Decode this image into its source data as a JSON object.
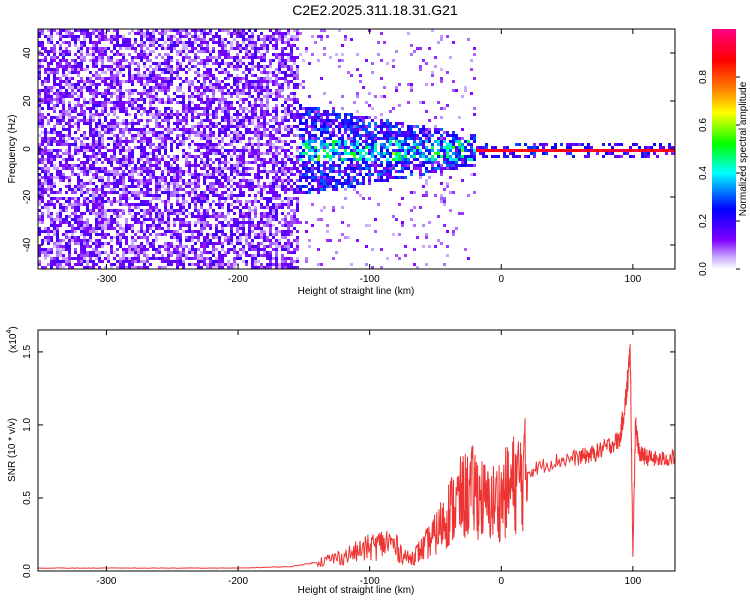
{
  "figure": {
    "title": "C2E2.2025.311.18.31.G21"
  },
  "chart_data": [
    {
      "type": "heatmap",
      "xlabel": "Height of straight line (km)",
      "ylabel": "Frequency (Hz)",
      "xlim": [
        -352,
        132
      ],
      "ylim": [
        -50,
        50
      ],
      "xticks": [
        -300,
        -200,
        -100,
        0,
        100
      ],
      "xtick_labels": [
        "-300",
        "-200",
        "-100",
        "0",
        "100"
      ],
      "yticks": [
        -40,
        -20,
        0,
        20,
        40
      ],
      "ytick_labels": [
        "-40",
        "-20",
        "0",
        "20",
        "40"
      ],
      "colorbar": {
        "label": "Normalized spectral amplitude",
        "range": [
          0,
          1
        ],
        "ticks": [
          0.0,
          0.2,
          0.4,
          0.6,
          0.8
        ],
        "tick_labels": [
          "0.0",
          "0.2",
          "0.4",
          "0.6",
          "0.8"
        ],
        "colormap": [
          "#ffffff",
          "#8000ff",
          "#0000ff",
          "#00ffff",
          "#00ff00",
          "#ffff00",
          "#ff8000",
          "#ff0000",
          "#ff0080"
        ]
      },
      "regions": [
        {
          "x": [
            -352,
            -155
          ],
          "freq": [
            -50,
            50
          ],
          "amplitude": [
            0.05,
            0.3
          ],
          "description": "broadband noise"
        },
        {
          "x": [
            -155,
            -20
          ],
          "freq": [
            -20,
            15
          ],
          "amplitude": [
            0.1,
            0.6
          ]
        },
        {
          "x": [
            -20,
            132
          ],
          "freq": [
            -1,
            1
          ],
          "amplitude": [
            0.8,
            1.0
          ],
          "description": "narrow line at 0 Hz"
        }
      ]
    },
    {
      "type": "line",
      "xlabel": "Height of straight line (km)",
      "ylabel": "SNR (10 * v/v)",
      "y_multiplier_label": "(x10",
      "y_multiplier_exp": "4",
      "xlim": [
        -352,
        132
      ],
      "ylim": [
        0,
        1.65
      ],
      "xticks": [
        -300,
        -200,
        -100,
        0,
        100
      ],
      "xtick_labels": [
        "-300",
        "-200",
        "-100",
        "0",
        "100"
      ],
      "yticks": [
        0.0,
        0.5,
        1.0,
        1.5
      ],
      "ytick_labels": [
        "0.0",
        "0.5",
        "1.0",
        "1.5"
      ],
      "color": "#ee3333",
      "x": [
        -352,
        -300,
        -250,
        -200,
        -160,
        -140,
        -120,
        -100,
        -85,
        -70,
        -60,
        -50,
        -40,
        -30,
        -20,
        -10,
        0,
        10,
        20,
        40,
        60,
        70,
        80,
        90,
        95,
        98,
        100,
        102,
        105,
        110,
        120,
        132
      ],
      "values": [
        0.02,
        0.02,
        0.02,
        0.02,
        0.03,
        0.06,
        0.1,
        0.16,
        0.2,
        0.08,
        0.15,
        0.25,
        0.4,
        0.5,
        0.55,
        0.45,
        0.5,
        0.6,
        0.68,
        0.75,
        0.78,
        0.8,
        0.85,
        0.9,
        1.2,
        1.5,
        0.1,
        1.0,
        0.8,
        0.78,
        0.76,
        0.78
      ]
    }
  ]
}
